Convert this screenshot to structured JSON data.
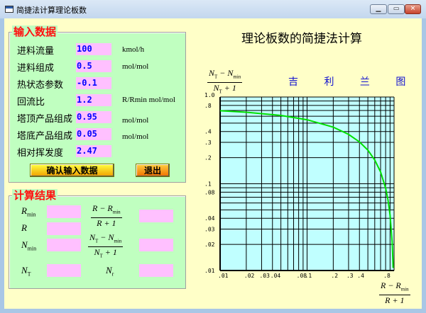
{
  "window": {
    "title": "简捷法计算理论板数",
    "minimize_icon": "minimize-icon",
    "maximize_icon": "maximize-icon",
    "close_icon": "close-icon"
  },
  "input_frame": {
    "title": "输入数据",
    "rows": [
      {
        "label": "进料流量",
        "value": "100",
        "unit": "kmol/h"
      },
      {
        "label": "进料组成",
        "value": "0.5",
        "unit": "mol/mol"
      },
      {
        "label": "热状态参数",
        "value": "-0.1",
        "unit": ""
      },
      {
        "label": "回流比",
        "value": "1.2",
        "unit": "R/Rmin mol/mol"
      },
      {
        "label": "塔顶产品组成",
        "value": "0.95",
        "unit": "mol/mol"
      },
      {
        "label": "塔底产品组成",
        "value": "0.05",
        "unit": "mol/mol"
      },
      {
        "label": "相对挥发度",
        "value": "2.47",
        "unit": ""
      }
    ],
    "confirm_label": "确认输入数据",
    "exit_label": "退出"
  },
  "result_frame": {
    "title": "计算结果",
    "rmin": {
      "sym": "R",
      "sub": "min",
      "value": ""
    },
    "r": {
      "sym": "R",
      "value": ""
    },
    "nmin": {
      "sym": "N",
      "sub": "min",
      "value": ""
    },
    "nt": {
      "sym": "N",
      "sub": "T",
      "value": ""
    },
    "nr": {
      "sym": "N",
      "sub": "r",
      "value": ""
    },
    "x_frac": {
      "num_a": "R − R",
      "num_sub": "min",
      "den": "R + 1",
      "value": ""
    },
    "y_frac": {
      "num_a": "N",
      "num_a_sub": "T",
      "num_b": " − N",
      "num_b_sub": "min",
      "den": "N",
      "den_sub": "T",
      "den_b": " + 1",
      "value": ""
    }
  },
  "main_title": "理论板数的简捷法计算",
  "chart_data": {
    "type": "line",
    "title": "吉 利 兰 图",
    "xlabel": {
      "num_a": "R − R",
      "num_sub": "min",
      "den": "R + 1"
    },
    "ylabel": {
      "num_a": "N",
      "num_a_sub": "T",
      "num_b": " − N",
      "num_b_sub": "min",
      "den": "N",
      "den_sub": "T",
      "den_b": " + 1"
    },
    "x_scale": "log",
    "y_scale": "log",
    "xlim": [
      0.01,
      1
    ],
    "ylim": [
      0.01,
      1
    ],
    "grid": true,
    "plot_bg": "#c0ffff",
    "line_color": "#00e000",
    "x_ticks": [
      ".01",
      ".02",
      ".03",
      ".04",
      ".08",
      ".1",
      ".2",
      ".3",
      ".4",
      ".8"
    ],
    "x_tick_values": [
      0.01,
      0.02,
      0.03,
      0.04,
      0.08,
      0.1,
      0.2,
      0.3,
      0.4,
      0.8
    ],
    "y_ticks": [
      "1.0",
      ".8",
      ".4",
      ".3",
      ".2",
      ".1",
      ".08",
      ".04",
      ".03",
      ".02",
      ".01"
    ],
    "y_tick_values": [
      1,
      0.8,
      0.4,
      0.3,
      0.2,
      0.1,
      0.08,
      0.04,
      0.03,
      0.02,
      0.01
    ],
    "series": [
      {
        "x": [
          0.01,
          0.02,
          0.05,
          0.1,
          0.2,
          0.3,
          0.4,
          0.5,
          0.6,
          0.7,
          0.8,
          0.85,
          0.9,
          0.95,
          0.97,
          0.975
        ],
        "y": [
          0.695,
          0.668,
          0.613,
          0.547,
          0.449,
          0.371,
          0.304,
          0.244,
          0.188,
          0.137,
          0.089,
          0.066,
          0.0435,
          0.0215,
          0.0128,
          0.0107
        ]
      }
    ]
  }
}
